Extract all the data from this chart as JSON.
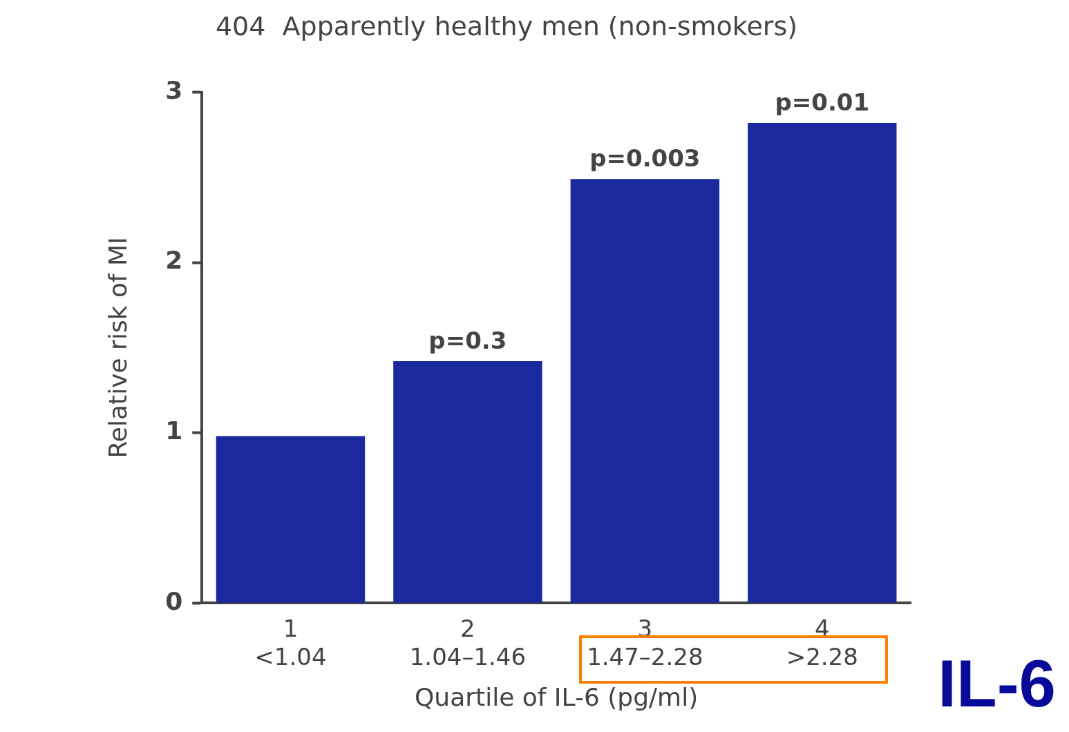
{
  "chart_data": {
    "type": "bar",
    "title": "404  Apparently healthy men (non-smokers)",
    "xlabel": "Quartile of IL-6 (pg/ml)",
    "ylabel": "Relative risk of MI",
    "categories": [
      "1\n<1.04",
      "2\n1.04–1.46",
      "3\n1.47–2.28",
      "4\n>2.28"
    ],
    "values": [
      0.98,
      1.42,
      2.49,
      2.82
    ],
    "color": "#1a2a9e",
    "ylim": [
      0,
      3
    ],
    "yticks": [
      0,
      1,
      2,
      3
    ],
    "grid": false,
    "legend": false,
    "annotations": [
      {
        "text": "p=0.3",
        "x": "2\n1.04–1.46",
        "y": 1.42
      },
      {
        "text": "p=0.003",
        "x": "3\n1.47–2.28",
        "y": 2.49
      },
      {
        "text": "p=0.01",
        "x": "4\n>2.28",
        "y": 2.82
      },
      "IL-6"
    ]
  }
}
